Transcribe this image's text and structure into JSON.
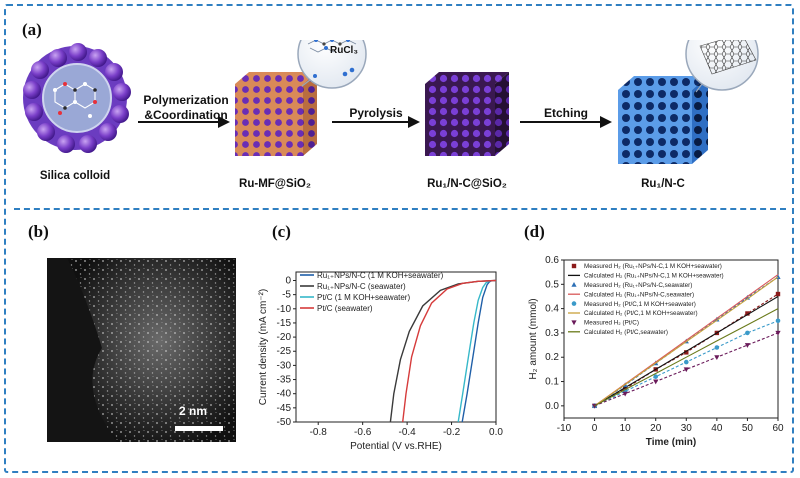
{
  "panels": {
    "a": "(a)",
    "b": "(b)",
    "c": "(c)",
    "d": "(d)"
  },
  "scheme": {
    "step1": "Polymerization",
    "step1b": "&Coordination",
    "step2": "Pyrolysis",
    "step3": "Etching",
    "bubble_label": "RuCl₃",
    "captions": {
      "silica": "Silica colloid",
      "rumf": "Ru-MF@SiO₂",
      "run_c_sio2": "Ru₁/N-C@SiO₂",
      "run_c": "Ru₁/N-C"
    }
  },
  "micrograph": {
    "scalebar": "2 nm"
  },
  "chart_data": [
    {
      "type": "line",
      "panel": "c",
      "xlabel": "Potential (V vs.RHE)",
      "ylabel": "Current density (mA cm⁻²)",
      "xlim": [
        -0.9,
        0.0
      ],
      "ylim": [
        -50,
        3
      ],
      "xticks": [
        "-0.8",
        "-0.6",
        "-0.4",
        "-0.2",
        "0.0"
      ],
      "yticks": [
        "0",
        "-5",
        "-10",
        "-15",
        "-20",
        "-25",
        "-30",
        "-35",
        "-40",
        "-45",
        "-50"
      ],
      "legend_position": "top-right",
      "series": [
        {
          "name": "Ru₁₊NPs/N-C (1 M KOH+seawater)",
          "color": "#1f5fa8",
          "x": [
            -0.152,
            -0.13,
            -0.1,
            -0.08,
            -0.06,
            -0.04,
            -0.03,
            -0.02,
            0.0
          ],
          "y": [
            -50,
            -40,
            -25,
            -15,
            -6,
            -1.5,
            -0.5,
            -0.1,
            0
          ]
        },
        {
          "name": "Ru₁₊NPs/N-C (seawater)",
          "color": "#3a3a3a",
          "x": [
            -0.475,
            -0.46,
            -0.43,
            -0.39,
            -0.33,
            -0.25,
            -0.17,
            -0.08,
            0.0
          ],
          "y": [
            -50,
            -40,
            -28,
            -18,
            -9,
            -3.5,
            -1.2,
            -0.3,
            0
          ]
        },
        {
          "name": "Pt/C (1 M KOH+seawater)",
          "color": "#36b8c9",
          "x": [
            -0.17,
            -0.15,
            -0.12,
            -0.1,
            -0.08,
            -0.06,
            -0.045,
            -0.03,
            0.0
          ],
          "y": [
            -50,
            -40,
            -25,
            -15,
            -7,
            -2.5,
            -0.8,
            -0.2,
            0
          ]
        },
        {
          "name": "Pt/C (seawater)",
          "color": "#d63b3b",
          "x": [
            -0.42,
            -0.405,
            -0.38,
            -0.34,
            -0.29,
            -0.22,
            -0.15,
            -0.08,
            0.0
          ],
          "y": [
            -50,
            -40,
            -27,
            -16,
            -8,
            -3,
            -1,
            -0.3,
            0
          ]
        }
      ]
    },
    {
      "type": "scatter",
      "panel": "d",
      "xlabel": "Time (min)",
      "ylabel": "H₂ amount (mmol)",
      "xlim": [
        -10,
        60
      ],
      "ylim": [
        -0.05,
        0.6
      ],
      "xticks": [
        "-10",
        "0",
        "10",
        "20",
        "30",
        "40",
        "50",
        "60"
      ],
      "yticks": [
        "0.0",
        "0.1",
        "0.2",
        "0.3",
        "0.4",
        "0.5",
        "0.6"
      ],
      "legend_position": "top-left",
      "x": [
        0,
        10,
        20,
        30,
        40,
        50,
        60
      ],
      "series": [
        {
          "name": "Measured H₂ (Ru₁₊NPs/N-C,1 M KOH+seawater)",
          "color": "#8b1a1a",
          "marker": "square",
          "line": "dashed",
          "values": [
            0,
            0.07,
            0.15,
            0.22,
            0.3,
            0.38,
            0.46
          ]
        },
        {
          "name": "Calculated H₂ (Ru₁₊NPs/N-C,1 M KOH+seawater)",
          "color": "#111111",
          "marker": "none",
          "line": "solid",
          "values": [
            0,
            0.075,
            0.15,
            0.225,
            0.3,
            0.375,
            0.45
          ]
        },
        {
          "name": "Measured H₂ (Ru₁₊NPs/N-C,seawater)",
          "color": "#2c6fb5",
          "marker": "triangle",
          "line": "dashed",
          "values": [
            0,
            0.085,
            0.175,
            0.265,
            0.355,
            0.445,
            0.53
          ]
        },
        {
          "name": "Calculated H₂ (Ru₁₊NPs/N-C,seawater)",
          "color": "#d95a5a",
          "marker": "none",
          "line": "solid",
          "values": [
            0,
            0.09,
            0.18,
            0.27,
            0.36,
            0.45,
            0.54
          ]
        },
        {
          "name": "Measured H₂ (Pt/C,1 M KOH+seawater)",
          "color": "#3a9ac9",
          "marker": "circle",
          "line": "dashed",
          "values": [
            0,
            0.06,
            0.12,
            0.18,
            0.24,
            0.3,
            0.35
          ]
        },
        {
          "name": "Calculated H₂ (Pt/C,1 M KOH+seawater)",
          "color": "#c9a23a",
          "marker": "none",
          "line": "solid",
          "values": [
            0,
            0.088,
            0.176,
            0.264,
            0.352,
            0.44,
            0.53
          ]
        },
        {
          "name": "Measured H₂ (Pt/C)",
          "color": "#6a1a5a",
          "marker": "triangle-down",
          "line": "dashed",
          "values": [
            0,
            0.05,
            0.1,
            0.15,
            0.2,
            0.25,
            0.3
          ]
        },
        {
          "name": "Calculated H₂ (Pt/C,seawater)",
          "color": "#6a7a1a",
          "marker": "none",
          "line": "solid",
          "values": [
            0,
            0.067,
            0.133,
            0.2,
            0.267,
            0.333,
            0.4
          ]
        }
      ]
    }
  ],
  "colors": {
    "frame": "#2f7fc1",
    "arrow": "#111111",
    "cube_orange": "#d98a58",
    "cube_purple": "#6a2db5",
    "cube_dark": "#3a1850",
    "framework_blue": "#3b7fd6"
  }
}
